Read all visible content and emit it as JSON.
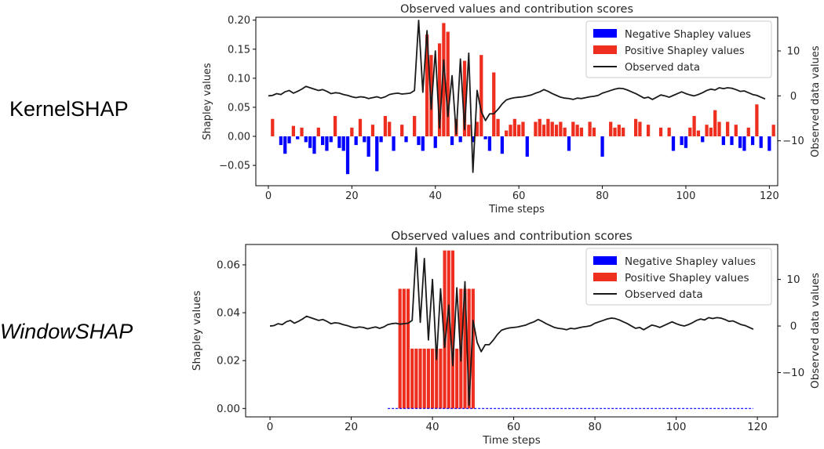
{
  "labels": {
    "kernel": "KernelSHAP",
    "window": "WindowSHAP"
  },
  "colors": {
    "negative": "#0000ff",
    "positive": "#ee2e1f",
    "observed": "#1a1a1a"
  },
  "chart_data": [
    {
      "type": "bar+line",
      "method": "KernelSHAP",
      "title": "Observed values and contribution scores",
      "xlabel": "Time steps",
      "ylabel": "Shapley values",
      "y2label": "Observed data values",
      "xlim": [
        -3,
        122
      ],
      "ylim": [
        -0.085,
        0.205
      ],
      "y2lim": [
        -20,
        17.5
      ],
      "xticks": [
        0,
        20,
        40,
        60,
        80,
        100,
        120
      ],
      "yticks": [
        -0.05,
        0.0,
        0.05,
        0.1,
        0.15,
        0.2
      ],
      "ytick_labels": [
        "−0.05",
        "0.00",
        "0.05",
        "0.10",
        "0.15",
        "0.20"
      ],
      "y2ticks": [
        -10,
        0,
        10
      ],
      "y2tick_labels": [
        "−10",
        "0",
        "10"
      ],
      "legend": {
        "position": "top-right",
        "entries": [
          "Negative Shapley values",
          "Positive Shapley values",
          "Observed data"
        ]
      },
      "shapley_values": [
        0.0,
        0.03,
        0.0,
        -0.015,
        -0.03,
        -0.012,
        0.018,
        -0.005,
        0.015,
        -0.01,
        -0.02,
        -0.03,
        0.015,
        -0.015,
        -0.025,
        -0.01,
        0.035,
        -0.02,
        -0.025,
        -0.065,
        0.015,
        -0.015,
        0.03,
        -0.01,
        -0.035,
        0.02,
        -0.06,
        -0.01,
        0.035,
        0.025,
        -0.025,
        0.0,
        0.02,
        -0.01,
        0.0,
        0.035,
        -0.015,
        -0.025,
        0.175,
        0.14,
        -0.02,
        0.16,
        0.195,
        0.18,
        -0.015,
        0.03,
        -0.01,
        0.13,
        0.02,
        -0.01,
        0.025,
        0.14,
        -0.005,
        -0.025,
        0.11,
        0.03,
        -0.03,
        0.01,
        0.02,
        0.03,
        0.02,
        0.025,
        -0.035,
        0.0,
        0.025,
        0.03,
        0.02,
        0.03,
        0.025,
        0.02,
        0.025,
        0.015,
        -0.025,
        0.025,
        0.02,
        0.015,
        0.0,
        0.025,
        0.015,
        0.0,
        -0.035,
        0.0,
        0.025,
        0.015,
        0.02,
        0.015,
        0.0,
        0.0,
        0.03,
        0.025,
        0.0,
        0.02,
        0.0,
        0.0,
        0.015,
        0.0,
        0.015,
        -0.025,
        0.0,
        -0.015,
        -0.02,
        0.015,
        0.035,
        0.01,
        -0.01,
        0.02,
        0.015,
        0.045,
        0.025,
        -0.015,
        0.025,
        -0.015,
        0.02,
        -0.02,
        -0.025,
        0.015,
        -0.015,
        0.055,
        -0.02,
        0.0,
        -0.025,
        0.02
      ],
      "observed": [
        0.0,
        0.1,
        0.5,
        0.3,
        0.9,
        1.2,
        0.6,
        1.0,
        1.5,
        2.1,
        1.8,
        1.5,
        1.2,
        1.4,
        1.0,
        0.5,
        0.7,
        0.6,
        0.3,
        0.1,
        -0.2,
        -0.4,
        -0.2,
        -0.3,
        -0.6,
        -0.4,
        -0.2,
        -0.5,
        -0.2,
        0.3,
        0.5,
        0.6,
        0.4,
        0.5,
        0.6,
        1.2,
        16.8,
        0.8,
        14.5,
        -3,
        10.0,
        -7.2,
        8.0,
        -4.6,
        4.5,
        -8.5,
        8.2,
        -7.5,
        9.5,
        -17.0,
        1.2,
        -3.5,
        -5.5,
        -4.0,
        -4.0,
        -3.0,
        -1.8,
        -0.9,
        -0.6,
        -0.4,
        -0.3,
        -0.2,
        0.0,
        0.2,
        0.6,
        0.9,
        1.4,
        1.0,
        0.5,
        0.1,
        -0.3,
        -0.5,
        -0.6,
        -0.8,
        -0.5,
        -0.6,
        -0.4,
        -0.2,
        -0.1,
        0.1,
        0.6,
        0.9,
        1.2,
        1.5,
        1.7,
        1.6,
        1.3,
        0.9,
        0.5,
        0.0,
        -0.5,
        -0.3,
        -0.8,
        -0.3,
        0.2,
        0.0,
        -0.3,
        0.1,
        0.5,
        0.9,
        0.5,
        0.2,
        0.0,
        0.3,
        0.7,
        1.2,
        1.5,
        1.3,
        1.8,
        1.6,
        1.8,
        1.7,
        1.4,
        1.0,
        1.1,
        0.7,
        0.3,
        0.1,
        -0.3,
        -0.7
      ]
    },
    {
      "type": "bar+line",
      "method": "WindowSHAP",
      "title": "Observed values and contribution scores",
      "xlabel": "Time steps",
      "ylabel": "Shapley values",
      "y2label": "Observed data values",
      "xlim": [
        -6,
        125
      ],
      "ylim": [
        -0.0035,
        0.0685
      ],
      "y2lim": [
        -19.5,
        17.5
      ],
      "xticks": [
        0,
        20,
        40,
        60,
        80,
        100,
        120
      ],
      "yticks": [
        0.0,
        0.02,
        0.04,
        0.06
      ],
      "ytick_labels": [
        "0.00",
        "0.02",
        "0.04",
        "0.06"
      ],
      "y2ticks": [
        -10,
        0,
        10
      ],
      "y2tick_labels": [
        "−10",
        "0",
        "10"
      ],
      "legend": {
        "position": "top-right",
        "entries": [
          "Negative Shapley values",
          "Positive Shapley values",
          "Observed data"
        ]
      },
      "positive_segments": [
        {
          "x_start": 32,
          "x_end": 35,
          "value": 0.05
        },
        {
          "x_start": 35,
          "x_end": 43,
          "value": 0.025
        },
        {
          "x_start": 43,
          "x_end": 46,
          "value": 0.066
        },
        {
          "x_start": 46,
          "x_end": 47,
          "value": 0.025
        },
        {
          "x_start": 47,
          "x_end": 51,
          "value": 0.05
        }
      ],
      "negative_dash": {
        "x_start": 29,
        "x_end": 119,
        "value": 0.0
      },
      "observed": [
        0.0,
        0.1,
        0.5,
        0.3,
        0.9,
        1.2,
        0.6,
        1.0,
        1.5,
        2.1,
        1.8,
        1.5,
        1.2,
        1.4,
        1.0,
        0.5,
        0.7,
        0.6,
        0.3,
        0.1,
        -0.2,
        -0.4,
        -0.2,
        -0.3,
        -0.6,
        -0.4,
        -0.2,
        -0.5,
        -0.2,
        0.3,
        0.5,
        0.6,
        0.4,
        0.5,
        0.6,
        1.2,
        16.8,
        0.8,
        14.5,
        -3,
        10.0,
        -7.2,
        8.0,
        -4.6,
        4.5,
        -8.5,
        8.2,
        -7.5,
        9.5,
        -17.0,
        1.2,
        -3.5,
        -5.5,
        -4.0,
        -4.0,
        -3.0,
        -1.8,
        -0.9,
        -0.6,
        -0.4,
        -0.3,
        -0.2,
        0.0,
        0.2,
        0.6,
        0.9,
        1.4,
        1.0,
        0.5,
        0.1,
        -0.3,
        -0.5,
        -0.6,
        -0.8,
        -0.5,
        -0.6,
        -0.4,
        -0.2,
        -0.1,
        0.1,
        0.6,
        0.9,
        1.2,
        1.5,
        1.7,
        1.6,
        1.3,
        0.9,
        0.5,
        0.0,
        -0.5,
        -0.3,
        -0.8,
        -0.3,
        0.2,
        0.0,
        -0.3,
        0.1,
        0.5,
        0.9,
        0.5,
        0.2,
        0.0,
        0.3,
        0.7,
        1.2,
        1.5,
        1.3,
        1.8,
        1.6,
        1.8,
        1.7,
        1.4,
        1.0,
        1.1,
        0.7,
        0.3,
        0.1,
        -0.3,
        -0.7
      ]
    }
  ]
}
